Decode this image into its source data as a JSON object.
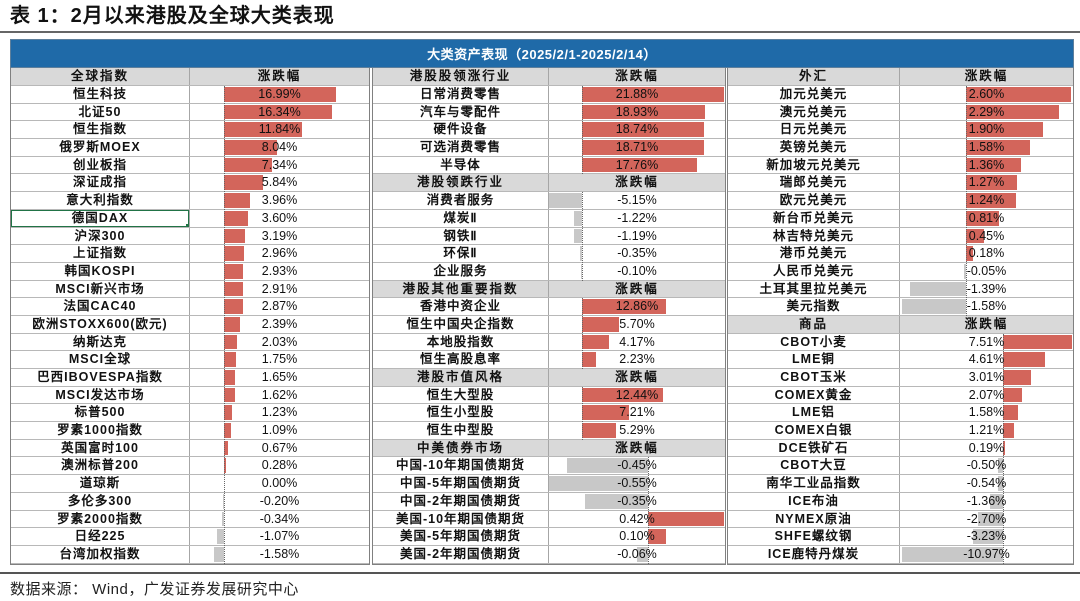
{
  "caption": "表 1：2月以来港股及全球大类表现",
  "footer": "数据来源：  Wind，广发证券发展研究中心",
  "colors": {
    "banner_bg": "#1f6aa8",
    "header_bg": "#d9d9d9",
    "positive_bar": "#d3655b",
    "negative_bar": "#c8c8c8",
    "selected_cell_border": "#217346"
  },
  "chart_data": {
    "type": "table",
    "title": "大类资产表现（2025/2/1-2025/2/14）",
    "value_header": "涨跌幅",
    "unit": "%",
    "groups": [
      {
        "sections": [
          {
            "header": "全球指数",
            "categories": [
              "恒生科技",
              "北证50",
              "恒生指数",
              "俄罗斯MOEX",
              "创业板指",
              "深证成指",
              "意大利指数",
              "德国DAX",
              "沪深300",
              "上证指数",
              "韩国KOSPI",
              "MSCI新兴市场",
              "法国CAC40",
              "欧洲STOXX600(欧元)",
              "纳斯达克",
              "MSCI全球",
              "巴西IBOVESPA指数",
              "MSCI发达市场",
              "标普500",
              "罗素1000指数",
              "英国富时100",
              "澳洲标普200",
              "道琼斯",
              "多伦多300",
              "罗素2000指数",
              "日经225",
              "台湾加权指数"
            ],
            "values": [
              16.99,
              16.34,
              11.84,
              8.04,
              7.34,
              5.84,
              3.96,
              3.6,
              3.19,
              2.96,
              2.93,
              2.91,
              2.87,
              2.39,
              2.03,
              1.75,
              1.65,
              1.62,
              1.23,
              1.09,
              0.67,
              0.28,
              0.0,
              -0.2,
              -0.34,
              -1.07,
              -1.58
            ],
            "labels": [
              "16.99%",
              "16.34%",
              "11.84%",
              "8.04%",
              "7.34%",
              "5.84%",
              "3.96%",
              "3.60%",
              "3.19%",
              "2.96%",
              "2.93%",
              "2.91%",
              "2.87%",
              "2.39%",
              "2.03%",
              "1.75%",
              "1.65%",
              "1.62%",
              "1.23%",
              "1.09%",
              "0.67%",
              "0.28%",
              "0.00%",
              "-0.20%",
              "-0.34%",
              "-1.07%",
              "-1.58%"
            ]
          }
        ]
      },
      {
        "sections": [
          {
            "header": "港股股领涨行业",
            "categories": [
              "日常消费零售",
              "汽车与零配件",
              "硬件设备",
              "可选消费零售",
              "半导体"
            ],
            "values": [
              21.88,
              18.93,
              18.74,
              18.71,
              17.76
            ],
            "labels": [
              "21.88%",
              "18.93%",
              "18.74%",
              "18.71%",
              "17.76%"
            ]
          },
          {
            "header": "港股领跌行业",
            "categories": [
              "消费者服务",
              "煤炭Ⅱ",
              "钢铁Ⅱ",
              "环保Ⅱ",
              "企业服务"
            ],
            "values": [
              -5.15,
              -1.22,
              -1.19,
              -0.35,
              -0.1
            ],
            "labels": [
              "-5.15%",
              "-1.22%",
              "-1.19%",
              "-0.35%",
              "-0.10%"
            ]
          },
          {
            "header": "港股其他重要指数",
            "categories": [
              "香港中资企业",
              "恒生中国央企指数",
              "本地股指数",
              "恒生高股息率"
            ],
            "values": [
              12.86,
              5.7,
              4.17,
              2.23
            ],
            "labels": [
              "12.86%",
              "5.70%",
              "4.17%",
              "2.23%"
            ]
          },
          {
            "header": "港股市值风格",
            "categories": [
              "恒生大型股",
              "恒生小型股",
              "恒生中型股"
            ],
            "values": [
              12.44,
              7.21,
              5.29
            ],
            "labels": [
              "12.44%",
              "7.21%",
              "5.29%"
            ]
          },
          {
            "header": "中美债券市场",
            "categories": [
              "中国-10年期国债期货",
              "中国-5年期国债期货",
              "中国-2年期国债期货",
              "美国-10年期国债期货",
              "美国-5年期国债期货",
              "美国-2年期国债期货"
            ],
            "values": [
              -0.45,
              -0.55,
              -0.35,
              0.42,
              0.1,
              -0.06
            ],
            "labels": [
              "-0.45%",
              "-0.55%",
              "-0.35%",
              "0.42%",
              "0.10%",
              "-0.06%"
            ]
          }
        ]
      },
      {
        "sections": [
          {
            "header": "外汇",
            "categories": [
              "加元兑美元",
              "澳元兑美元",
              "日元兑美元",
              "英镑兑美元",
              "新加坡元兑美元",
              "瑞郎兑美元",
              "欧元兑美元",
              "新台币兑美元",
              "林吉特兑美元",
              "港币兑美元",
              "人民币兑美元",
              "土耳其里拉兑美元",
              "美元指数"
            ],
            "values": [
              2.6,
              2.29,
              1.9,
              1.58,
              1.36,
              1.27,
              1.24,
              0.81,
              0.45,
              0.18,
              -0.05,
              -1.39,
              -1.58
            ],
            "labels": [
              "2.60%",
              "2.29%",
              "1.90%",
              "1.58%",
              "1.36%",
              "1.27%",
              "1.24%",
              "0.81%",
              "0.45%",
              "0.18%",
              "-0.05%",
              "-1.39%",
              "-1.58%"
            ]
          },
          {
            "header": "商品",
            "categories": [
              "CBOT小麦",
              "LME铜",
              "CBOT玉米",
              "COMEX黄金",
              "LME铝",
              "COMEX白银",
              "DCE铁矿石",
              "CBOT大豆",
              "南华工业品指数",
              "ICE布油",
              "NYMEX原油",
              "SHFE螺纹钢",
              "ICE鹿特丹煤炭"
            ],
            "values": [
              7.51,
              4.61,
              3.01,
              2.07,
              1.58,
              1.21,
              0.19,
              -0.5,
              -0.54,
              -1.36,
              -2.7,
              -3.23,
              -10.97
            ],
            "labels": [
              "7.51%",
              "4.61%",
              "3.01%",
              "2.07%",
              "1.58%",
              "1.21%",
              "0.19%",
              "-0.50%",
              "-0.54%",
              "-1.36%",
              "-2.70%",
              "-3.23%",
              "-10.97%"
            ]
          }
        ]
      }
    ]
  }
}
